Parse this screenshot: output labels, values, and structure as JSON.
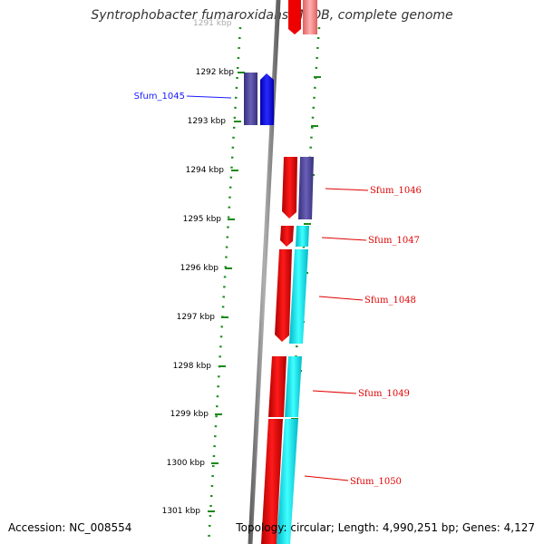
{
  "title": "Syntrophobacter fumaroxidans MPOB, complete genome",
  "accession": "Accession: NC_008554",
  "topology": "Topology: circular; Length: 4,990,251 bp; Genes: 4,127",
  "kbp_labels": [
    "1291 kbp",
    "1292 kbp",
    "1293 kbp",
    "1294 kbp",
    "1295 kbp",
    "1296 kbp",
    "1297 kbp",
    "1298 kbp",
    "1299 kbp",
    "1300 kbp",
    "1301 kbp"
  ],
  "genes": [
    {
      "name": "Sfum_1045",
      "strand": "reverse",
      "color": "#0000ff"
    },
    {
      "name": "Sfum_1046",
      "strand": "forward",
      "color": "#ee0000"
    },
    {
      "name": "Sfum_1047",
      "strand": "forward",
      "color": "#ee0000"
    },
    {
      "name": "Sfum_1048",
      "strand": "forward",
      "color": "#ee0000"
    },
    {
      "name": "Sfum_1049",
      "strand": "forward",
      "color": "#ee0000"
    },
    {
      "name": "Sfum_1050",
      "strand": "forward",
      "color": "#ee0000"
    }
  ],
  "colors": {
    "forward_gene": "#ee0000",
    "reverse_gene": "#0000ff",
    "cog_reverse": "#4b3f8f",
    "cog_forward": "#00e5ee",
    "backbone": "#808080",
    "ticks": "#1a8a1a"
  }
}
